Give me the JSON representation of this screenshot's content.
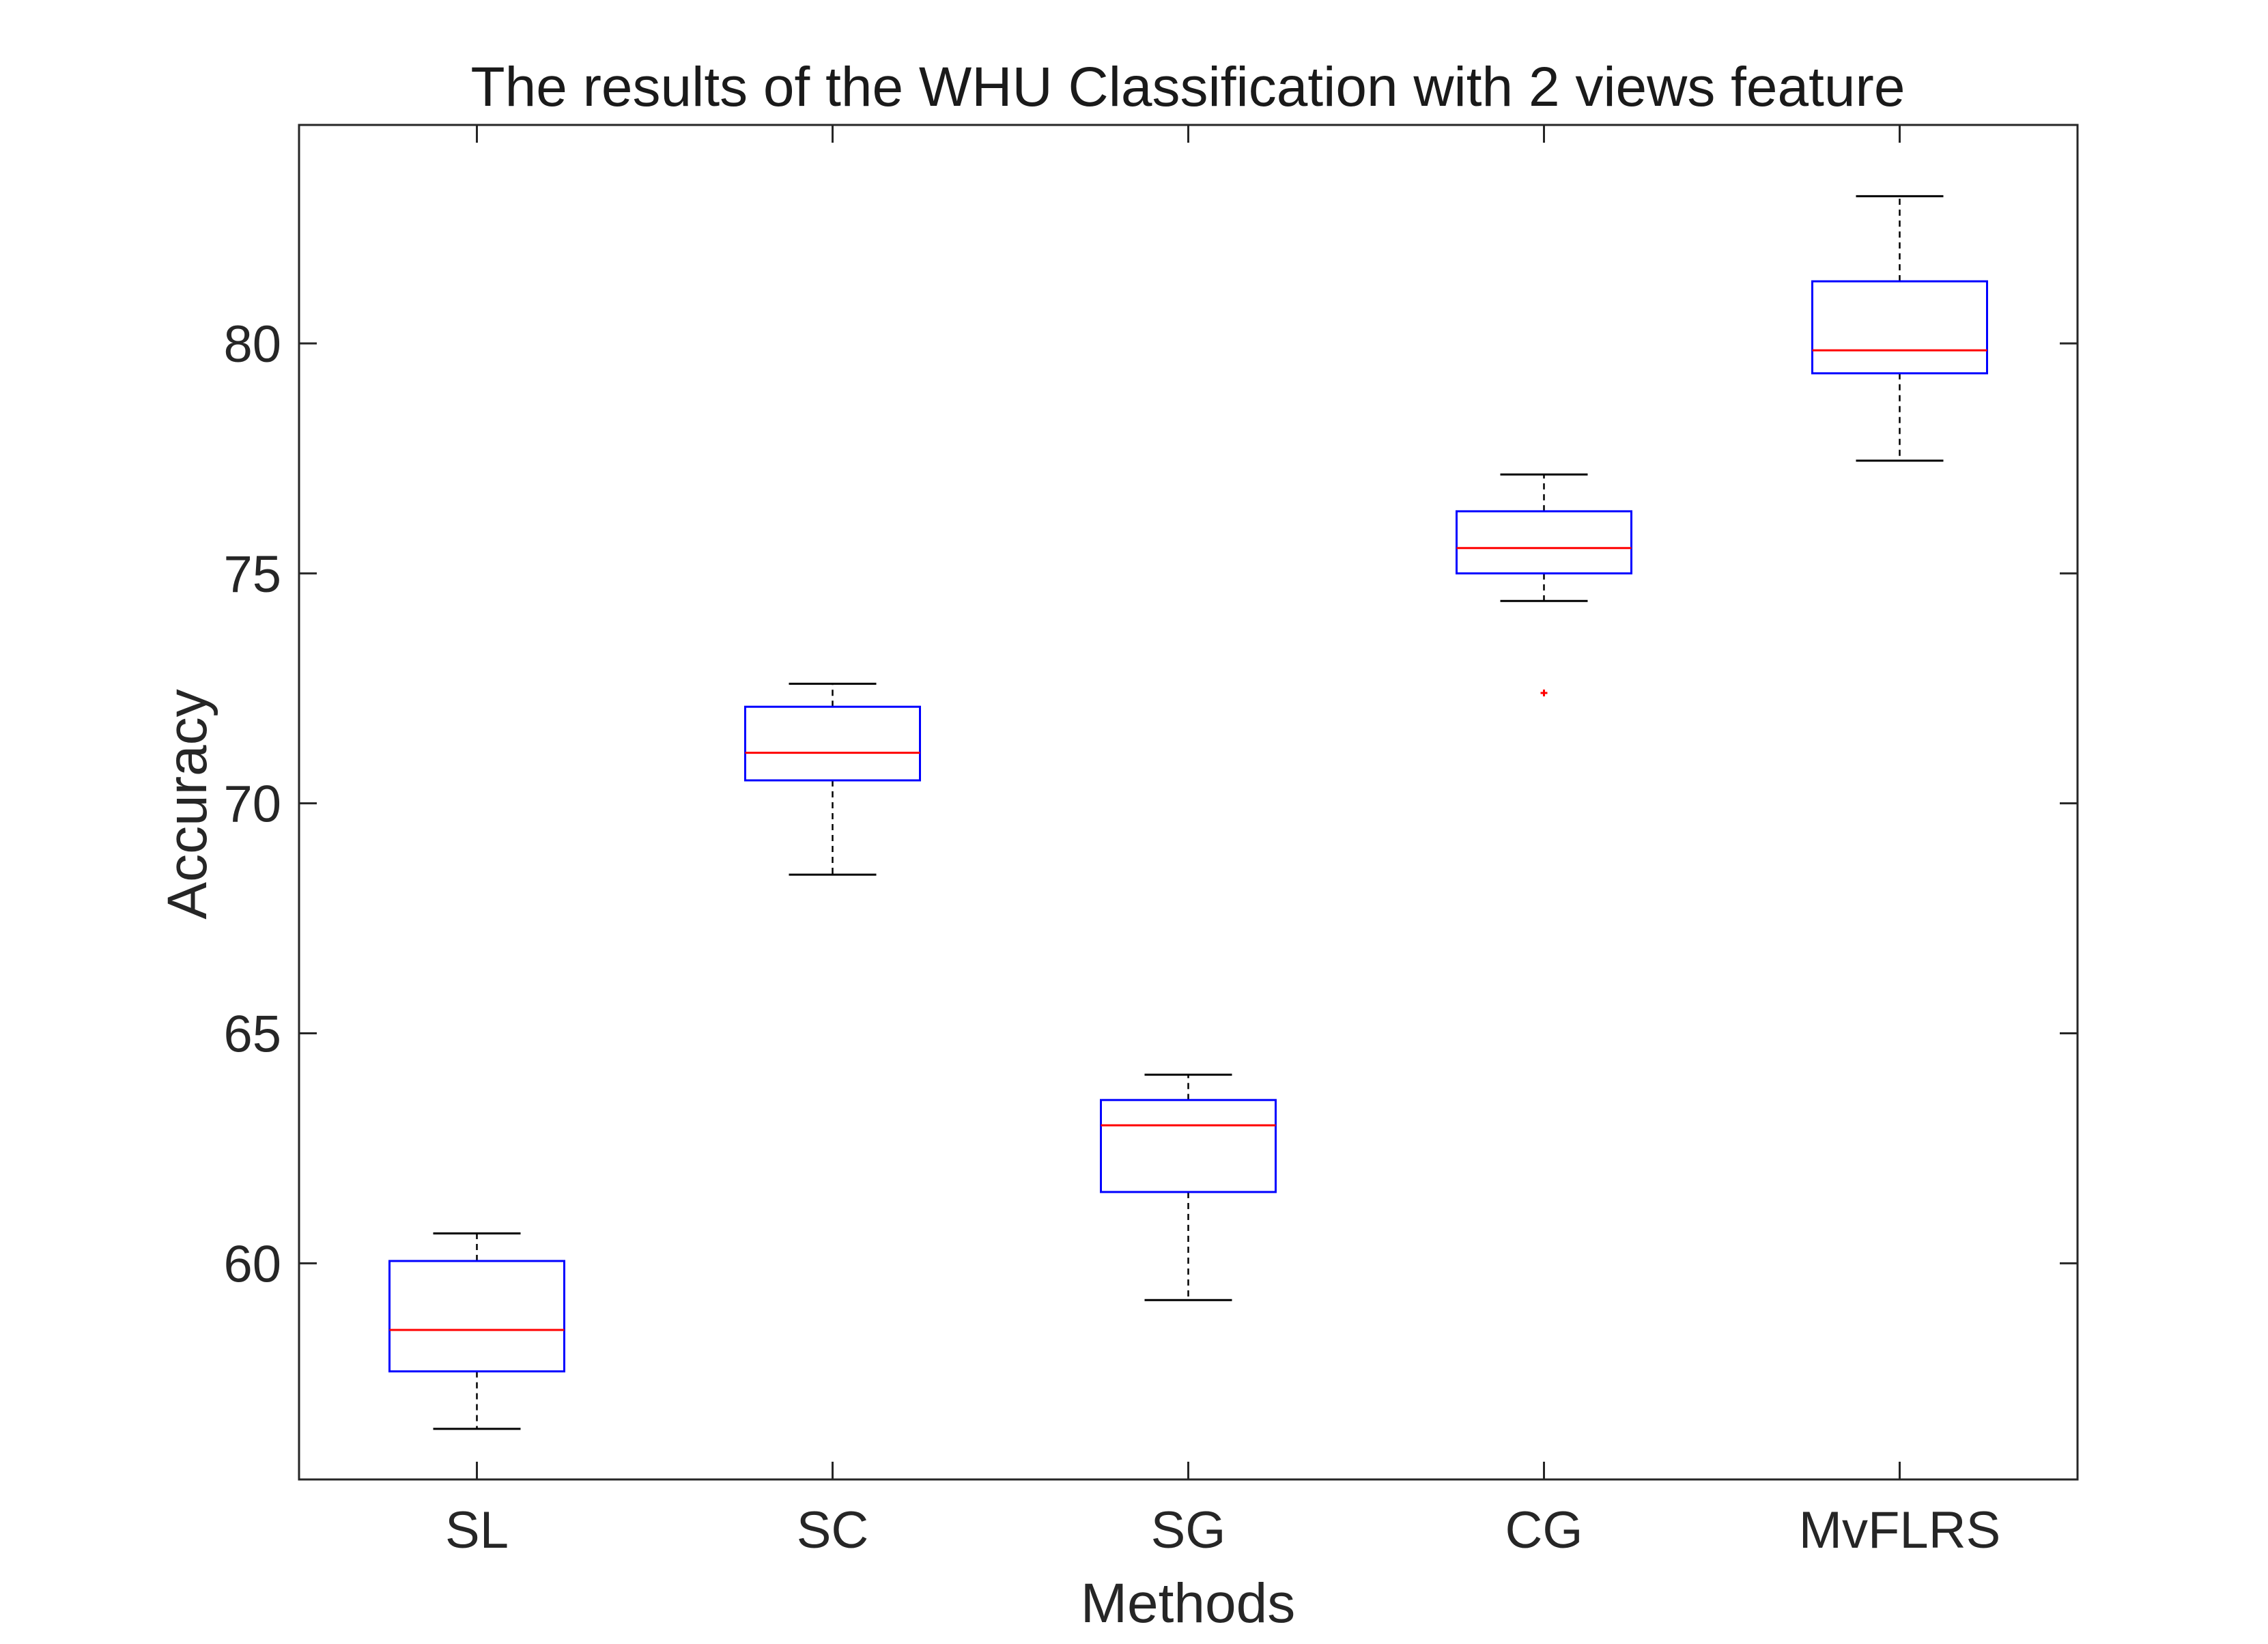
{
  "chart_data": {
    "type": "box",
    "title": "The results of the WHU Classification with 2 views feature",
    "xlabel": "Methods",
    "ylabel": "Accuracy",
    "categories": [
      "SL",
      "SC",
      "SG",
      "CG",
      "MvFLRS"
    ],
    "yticks": [
      60,
      65,
      70,
      75,
      80
    ],
    "ylim": [
      55.3,
      84.75
    ],
    "grid": false,
    "legend": "none",
    "colors": {
      "box": "#0000ff",
      "median": "#ff0000",
      "whisker": "#000000",
      "outlier": "#ff0000",
      "axes": "#262626"
    },
    "boxes": [
      {
        "category": "SL",
        "whisker_low": 56.4,
        "q1": 57.65,
        "median": 58.55,
        "q3": 60.05,
        "whisker_high": 60.65,
        "outliers": []
      },
      {
        "category": "SC",
        "whisker_low": 68.45,
        "q1": 70.5,
        "median": 71.1,
        "q3": 72.1,
        "whisker_high": 72.6,
        "outliers": []
      },
      {
        "category": "SG",
        "whisker_low": 59.2,
        "q1": 61.55,
        "median": 63.0,
        "q3": 63.55,
        "whisker_high": 64.1,
        "outliers": []
      },
      {
        "category": "CG",
        "whisker_low": 74.4,
        "q1": 75.0,
        "median": 75.55,
        "q3": 76.35,
        "whisker_high": 77.15,
        "outliers": [
          72.4
        ]
      },
      {
        "category": "MvFLRS",
        "whisker_low": 77.45,
        "q1": 79.35,
        "median": 79.85,
        "q3": 81.35,
        "whisker_high": 83.2,
        "outliers": []
      }
    ]
  }
}
